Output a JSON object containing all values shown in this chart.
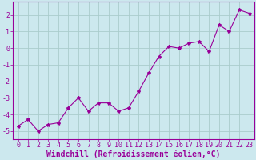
{
  "x": [
    0,
    1,
    2,
    3,
    4,
    5,
    6,
    7,
    8,
    9,
    10,
    11,
    12,
    13,
    14,
    15,
    16,
    17,
    18,
    19,
    20,
    21,
    22,
    23
  ],
  "y": [
    -4.7,
    -4.3,
    -5.0,
    -4.6,
    -4.5,
    -3.6,
    -3.0,
    -3.8,
    -3.3,
    -3.3,
    -3.8,
    -3.6,
    -2.6,
    -1.5,
    -0.5,
    0.1,
    0.0,
    0.3,
    0.4,
    -0.2,
    1.4,
    1.0,
    2.3,
    2.1
  ],
  "line_color": "#990099",
  "marker": "*",
  "marker_size": 3,
  "bg_color": "#cce8ee",
  "grid_color": "#aacccc",
  "xlabel": "Windchill (Refroidissement éolien,°C)",
  "xlim": [
    -0.5,
    23.5
  ],
  "ylim": [
    -5.5,
    2.8
  ],
  "yticks": [
    -5,
    -4,
    -3,
    -2,
    -1,
    0,
    1,
    2
  ],
  "xticks": [
    0,
    1,
    2,
    3,
    4,
    5,
    6,
    7,
    8,
    9,
    10,
    11,
    12,
    13,
    14,
    15,
    16,
    17,
    18,
    19,
    20,
    21,
    22,
    23
  ],
  "tick_color": "#990099",
  "label_color": "#990099",
  "spine_color": "#990099",
  "tick_fontsize": 6,
  "xlabel_fontsize": 7
}
